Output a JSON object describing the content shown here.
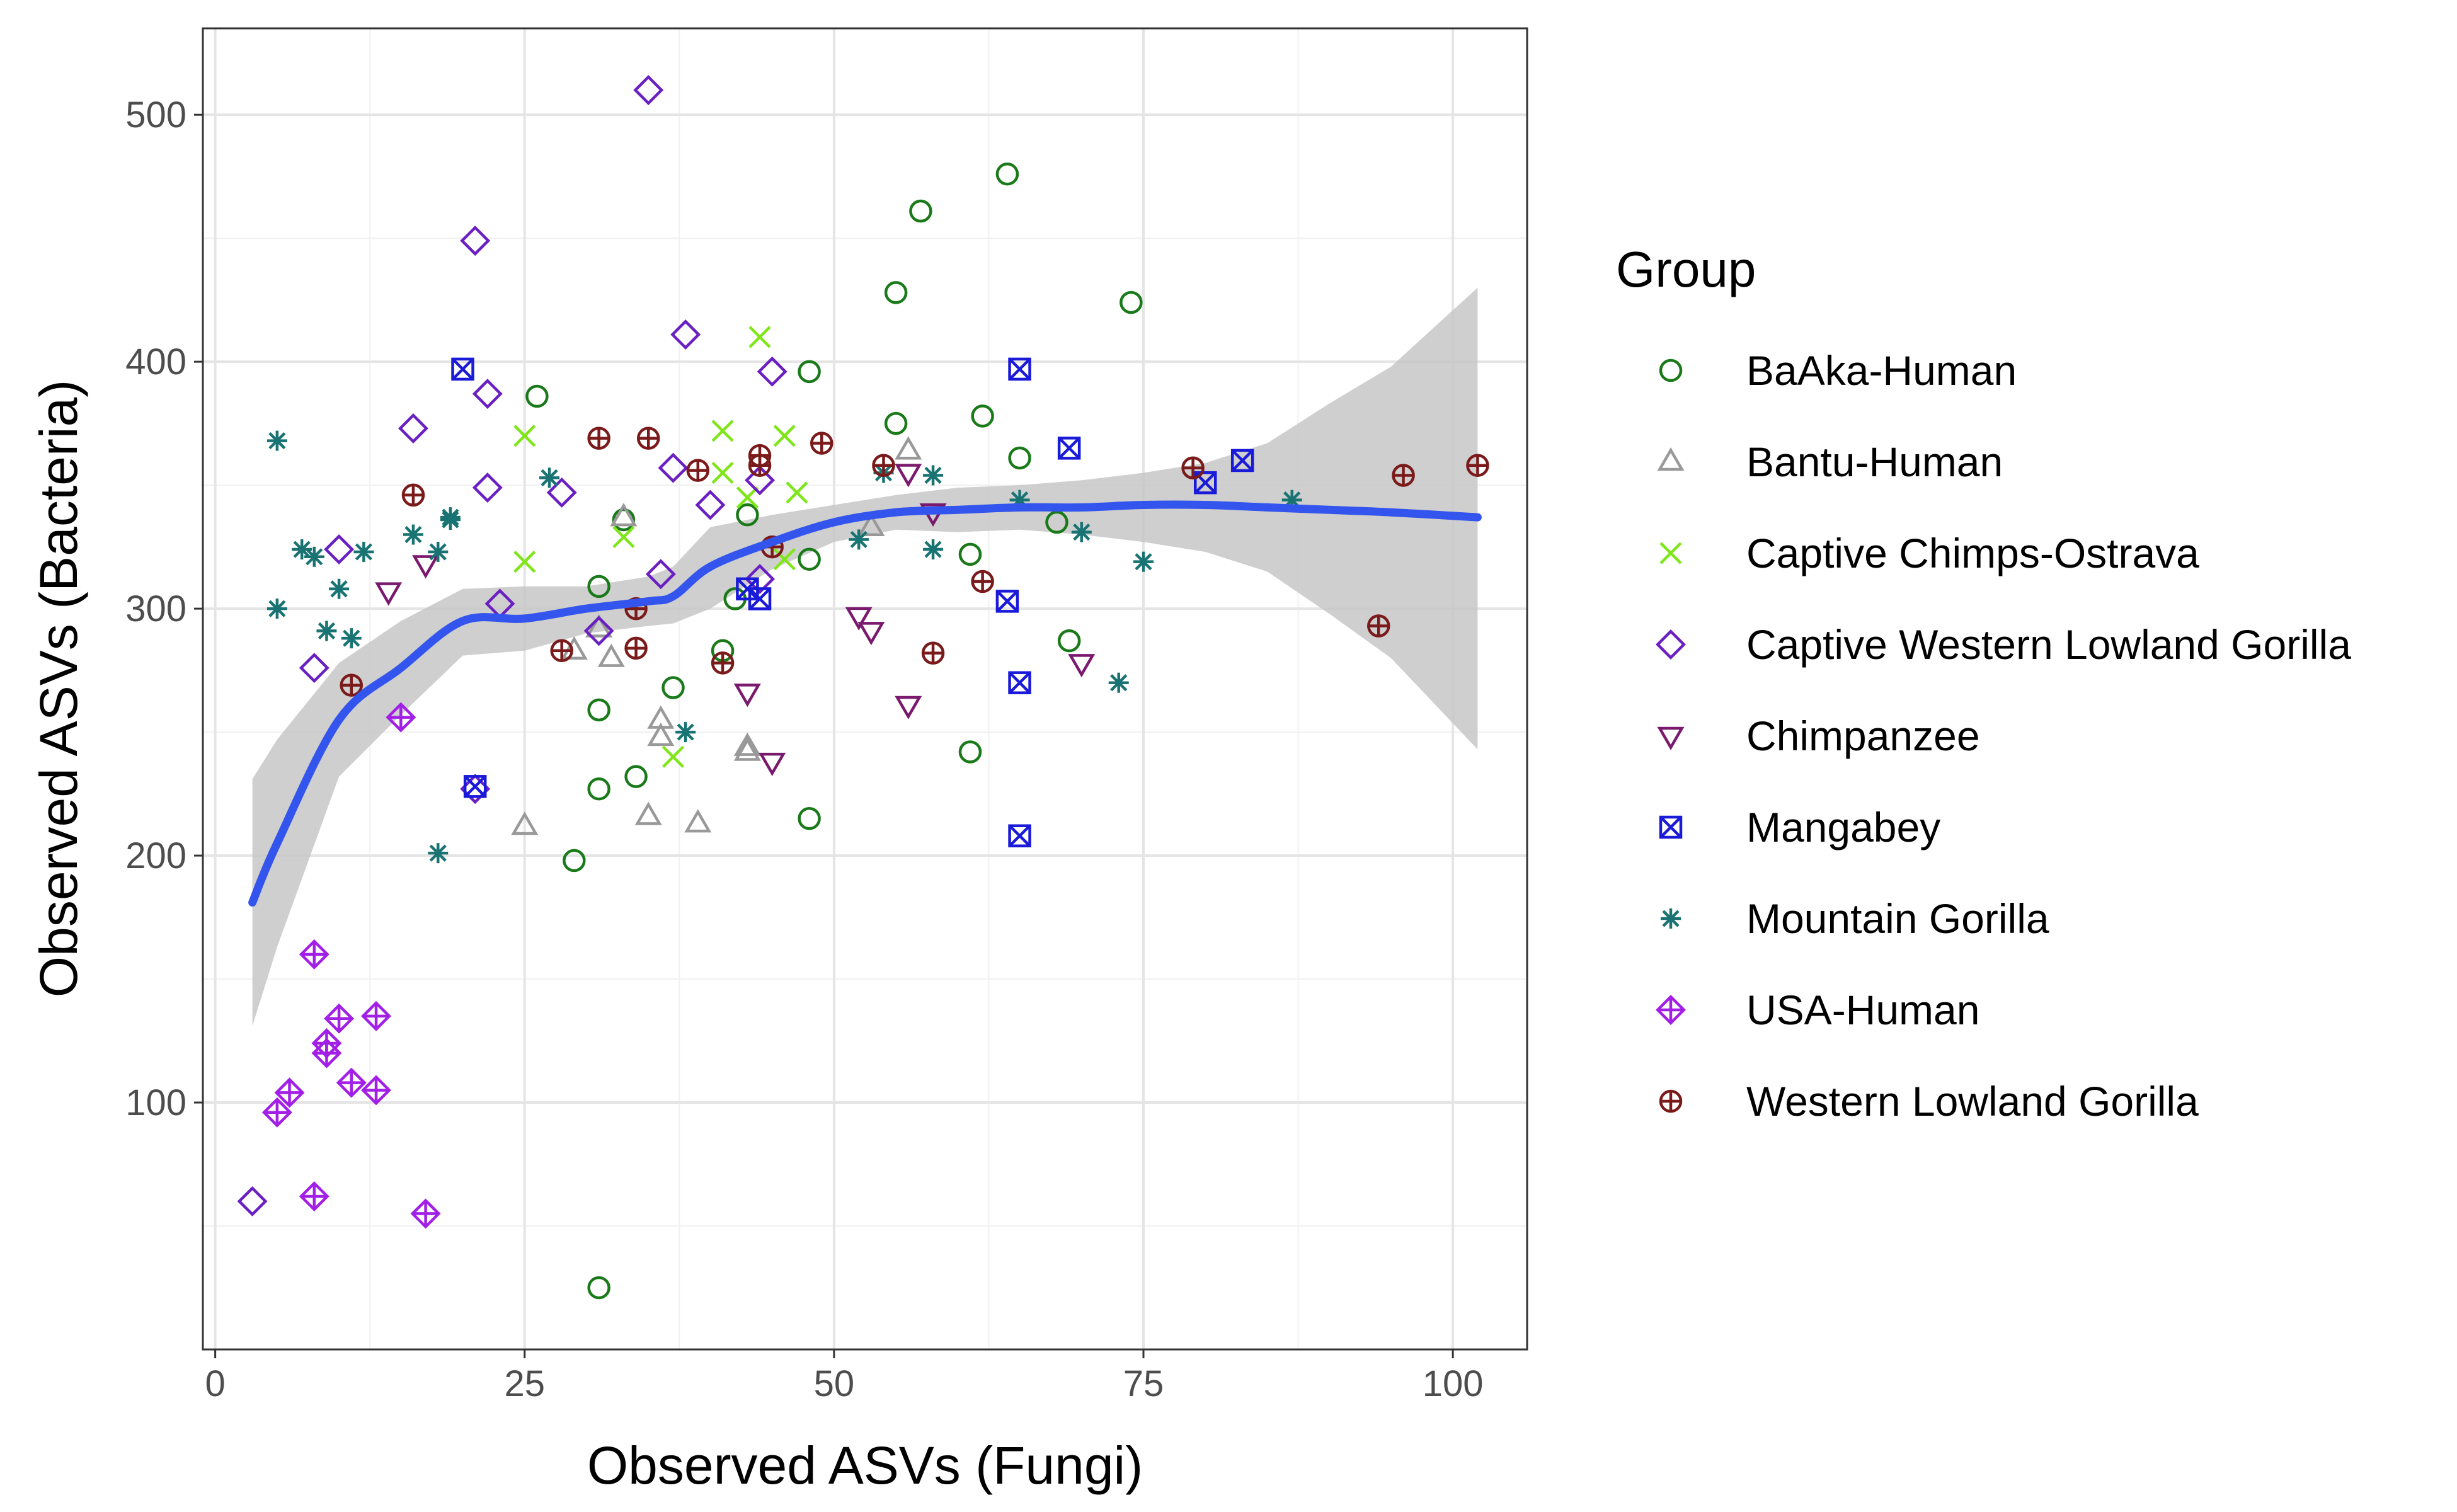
{
  "chart_data": {
    "type": "scatter",
    "xlabel": "Observed ASVs (Fungi)",
    "ylabel": "Observed ASVs (Bacteria)",
    "xlim": [
      -1,
      106
    ],
    "ylim": [
      0,
      535
    ],
    "x_ticks": [
      0,
      25,
      50,
      75,
      100
    ],
    "y_ticks": [
      100,
      200,
      300,
      400,
      500
    ],
    "x_tick_labels": [
      "0",
      "25",
      "50",
      "75",
      "100"
    ],
    "y_tick_labels": [
      "100",
      "200",
      "300",
      "400",
      "500"
    ],
    "grid": true,
    "legend": {
      "title": "Group",
      "position": "right"
    },
    "series": [
      {
        "name": "BaAka-Human",
        "marker": "circle",
        "color": "#1a7a1a",
        "points": [
          [
            31,
            25
          ],
          [
            29,
            198
          ],
          [
            31,
            227
          ],
          [
            34,
            232
          ],
          [
            31,
            259
          ],
          [
            37,
            268
          ],
          [
            31,
            309
          ],
          [
            33,
            336
          ],
          [
            26,
            386
          ],
          [
            41,
            283
          ],
          [
            42,
            304
          ],
          [
            43,
            338
          ],
          [
            48,
            320
          ],
          [
            48,
            215
          ],
          [
            48,
            396
          ],
          [
            55,
            375
          ],
          [
            55,
            428
          ],
          [
            57,
            461
          ],
          [
            61,
            322
          ],
          [
            61,
            242
          ],
          [
            62,
            378
          ],
          [
            64,
            476
          ],
          [
            65,
            361
          ],
          [
            68,
            335
          ],
          [
            69,
            287
          ],
          [
            74,
            424
          ]
        ]
      },
      {
        "name": "Bantu-Human",
        "marker": "triangle-up",
        "color": "#999999",
        "points": [
          [
            25,
            212
          ],
          [
            29,
            283
          ],
          [
            31,
            292
          ],
          [
            32,
            280
          ],
          [
            33,
            337
          ],
          [
            35,
            216
          ],
          [
            36,
            248
          ],
          [
            36,
            255
          ],
          [
            39,
            213
          ],
          [
            43,
            244
          ],
          [
            43,
            242
          ],
          [
            53,
            333
          ],
          [
            56,
            364
          ]
        ]
      },
      {
        "name": "Captive Chimps-Ostrava",
        "marker": "x",
        "color": "#7fe619",
        "points": [
          [
            25,
            319
          ],
          [
            25,
            370
          ],
          [
            33,
            329
          ],
          [
            37,
            240
          ],
          [
            41,
            372
          ],
          [
            41,
            355
          ],
          [
            43,
            345
          ],
          [
            44,
            410
          ],
          [
            46,
            370
          ],
          [
            47,
            347
          ],
          [
            46,
            320
          ]
        ]
      },
      {
        "name": "Captive Western Lowland Gorilla",
        "marker": "diamond",
        "color": "#6a1fc2",
        "points": [
          [
            3,
            60
          ],
          [
            8,
            276
          ],
          [
            10,
            324
          ],
          [
            16,
            373
          ],
          [
            21,
            449
          ],
          [
            21,
            227
          ],
          [
            22,
            387
          ],
          [
            22,
            349
          ],
          [
            23,
            302
          ],
          [
            28,
            347
          ],
          [
            31,
            291
          ],
          [
            35,
            510
          ],
          [
            36,
            314
          ],
          [
            37,
            357
          ],
          [
            38,
            411
          ],
          [
            40,
            342
          ],
          [
            44,
            352
          ],
          [
            44,
            312
          ],
          [
            45,
            396
          ]
        ]
      },
      {
        "name": "Chimpanzee",
        "marker": "triangle-down",
        "color": "#7a1a6e",
        "points": [
          [
            14,
            307
          ],
          [
            17,
            318
          ],
          [
            43,
            266
          ],
          [
            45,
            238
          ],
          [
            52,
            297
          ],
          [
            53,
            291
          ],
          [
            56,
            261
          ],
          [
            56,
            355
          ],
          [
            58,
            339
          ],
          [
            70,
            278
          ]
        ]
      },
      {
        "name": "Mangabey",
        "marker": "square-x",
        "color": "#1a1ad9",
        "points": [
          [
            20,
            397
          ],
          [
            21,
            228
          ],
          [
            43,
            308
          ],
          [
            44,
            304
          ],
          [
            64,
            303
          ],
          [
            65,
            397
          ],
          [
            65,
            270
          ],
          [
            65,
            208
          ],
          [
            69,
            365
          ],
          [
            80,
            351
          ],
          [
            83,
            360
          ]
        ]
      },
      {
        "name": "Mountain Gorilla",
        "marker": "asterisk",
        "color": "#1a7373",
        "points": [
          [
            5,
            368
          ],
          [
            5,
            300
          ],
          [
            7,
            324
          ],
          [
            8,
            321
          ],
          [
            9,
            291
          ],
          [
            10,
            308
          ],
          [
            11,
            288
          ],
          [
            12,
            323
          ],
          [
            16,
            330
          ],
          [
            18,
            323
          ],
          [
            18,
            201
          ],
          [
            19,
            336
          ],
          [
            19,
            337
          ],
          [
            27,
            353
          ],
          [
            38,
            250
          ],
          [
            52,
            328
          ],
          [
            54,
            355
          ],
          [
            58,
            354
          ],
          [
            58,
            324
          ],
          [
            65,
            344
          ],
          [
            70,
            331
          ],
          [
            73,
            270
          ],
          [
            75,
            319
          ],
          [
            87,
            344
          ]
        ]
      },
      {
        "name": "USA-Human",
        "marker": "diamond-plus",
        "color": "#a21fe6",
        "points": [
          [
            5,
            96
          ],
          [
            6,
            104
          ],
          [
            8,
            160
          ],
          [
            8,
            62
          ],
          [
            9,
            120
          ],
          [
            9,
            124
          ],
          [
            10,
            134
          ],
          [
            11,
            108
          ],
          [
            13,
            135
          ],
          [
            13,
            105
          ],
          [
            15,
            256
          ],
          [
            17,
            55
          ]
        ]
      },
      {
        "name": "Western Lowland Gorilla",
        "marker": "circle-plus",
        "color": "#7a1a1a",
        "points": [
          [
            11,
            269
          ],
          [
            16,
            346
          ],
          [
            28,
            283
          ],
          [
            31,
            369
          ],
          [
            34,
            300
          ],
          [
            34,
            284
          ],
          [
            35,
            369
          ],
          [
            39,
            356
          ],
          [
            41,
            278
          ],
          [
            44,
            362
          ],
          [
            44,
            358
          ],
          [
            45,
            325
          ],
          [
            49,
            367
          ],
          [
            54,
            358
          ],
          [
            58,
            282
          ],
          [
            62,
            311
          ],
          [
            79,
            357
          ],
          [
            94,
            293
          ],
          [
            96,
            354
          ],
          [
            102,
            358
          ]
        ]
      }
    ],
    "smooth": {
      "color": "#3355ee",
      "band_color": "#c7c7c7",
      "x": [
        3,
        5,
        10,
        15,
        20,
        25,
        30,
        35,
        37,
        40,
        45,
        50,
        55,
        60,
        65,
        70,
        75,
        80,
        85,
        90,
        95,
        102
      ],
      "y": [
        181,
        205,
        255,
        276,
        295,
        296,
        300,
        303,
        305,
        317,
        327,
        335,
        339,
        340,
        341,
        341,
        342,
        342,
        341,
        340,
        339,
        337
      ],
      "upper": [
        231,
        247,
        278,
        295,
        308,
        309,
        309,
        313,
        317,
        333,
        338,
        342,
        346,
        349,
        350,
        352,
        355,
        359,
        367,
        383,
        398,
        430
      ],
      "lower": [
        131,
        163,
        232,
        257,
        281,
        283,
        290,
        293,
        294,
        300,
        316,
        327,
        332,
        331,
        332,
        330,
        327,
        323,
        315,
        298,
        280,
        243
      ]
    }
  }
}
